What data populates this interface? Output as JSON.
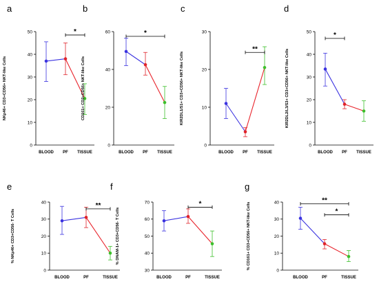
{
  "colors": {
    "blood": "#3a32e0",
    "pf": "#e0232a",
    "tissue": "#3cbf2a",
    "line_blue": "#3a32e0",
    "line_red": "#e8222a"
  },
  "chart_data": [
    {
      "type": "line",
      "panel": "a",
      "categories": [
        "BLOOD",
        "PF",
        "TISSUE"
      ],
      "values": [
        37,
        38,
        20.5
      ],
      "error_low": [
        28,
        31,
        13.5
      ],
      "error_high": [
        45.5,
        45,
        27
      ],
      "ylabel": "NKp46+ CD3+CD56+ NKT-like Cells",
      "ylim": [
        0,
        50
      ],
      "yticks": [
        0,
        10,
        20,
        30,
        40,
        50
      ],
      "significance": [
        {
          "from": 1,
          "to": 2,
          "label": "*",
          "level": 48.5
        }
      ]
    },
    {
      "type": "line",
      "panel": "b",
      "categories": [
        "BLOOD",
        "PF",
        "TISSUE"
      ],
      "values": [
        49.5,
        42.5,
        22.5
      ],
      "error_low": [
        42,
        37,
        14
      ],
      "error_high": [
        56.5,
        49,
        31
      ],
      "ylabel": "CD161+ CD3+CD56+ NKT-like Cells",
      "ylim": [
        0,
        60
      ],
      "yticks": [
        0,
        20,
        40,
        60
      ],
      "significance": [
        {
          "from": 0,
          "to": 2,
          "label": "*",
          "level": 57.5
        }
      ]
    },
    {
      "type": "line",
      "panel": "c",
      "categories": [
        "BLOOD",
        "PF",
        "TISSUE"
      ],
      "values": [
        11,
        3.5,
        20.5
      ],
      "error_low": [
        7,
        2.2,
        16
      ],
      "error_high": [
        15,
        4.6,
        26
      ],
      "ylabel": "KIR2DL1/S1+ CD3+CD56+ NKT-like Cells",
      "ylim": [
        0,
        30
      ],
      "yticks": [
        0,
        10,
        20,
        30
      ],
      "significance": [
        {
          "from": 1,
          "to": 2,
          "label": "**",
          "level": 24.5
        }
      ]
    },
    {
      "type": "line",
      "panel": "d",
      "categories": [
        "BLOOD",
        "PF",
        "TISSUE"
      ],
      "values": [
        33.5,
        18,
        15
      ],
      "error_low": [
        26,
        16,
        10.5
      ],
      "error_high": [
        40.5,
        20,
        19.5
      ],
      "ylabel": "KIR2DL2/L3/S3+ CD3+CD56+ NKT-like Cells",
      "ylim": [
        0,
        50
      ],
      "yticks": [
        0,
        10,
        20,
        30,
        40,
        50
      ],
      "significance": [
        {
          "from": 0,
          "to": 1,
          "label": "*",
          "level": 47
        }
      ]
    },
    {
      "type": "line",
      "panel": "e",
      "categories": [
        "BLOOD",
        "PF",
        "TISSUE"
      ],
      "values": [
        29,
        31,
        10
      ],
      "error_low": [
        21,
        25,
        6
      ],
      "error_high": [
        37.5,
        37,
        14
      ],
      "ylabel": "% NKp46+ CD3+CD56- T Cells",
      "ylim": [
        0,
        40
      ],
      "yticks": [
        0,
        10,
        20,
        30,
        40
      ],
      "significance": [
        {
          "from": 1,
          "to": 2,
          "label": "**",
          "level": 36
        }
      ]
    },
    {
      "type": "line",
      "panel": "f",
      "categories": [
        "BLOOD",
        "PF",
        "TISSUE"
      ],
      "values": [
        59,
        61.5,
        45.5
      ],
      "error_low": [
        53,
        57.5,
        38
      ],
      "error_high": [
        65,
        66,
        53
      ],
      "ylabel": "% DNAM-1+ CD3+CD56- T Cells",
      "ylim": [
        30,
        70
      ],
      "yticks": [
        30,
        40,
        50,
        60,
        70
      ],
      "significance": [
        {
          "from": 1,
          "to": 2,
          "label": "*",
          "level": 67
        }
      ]
    },
    {
      "type": "line",
      "panel": "g",
      "categories": [
        "BLOOD",
        "PF",
        "TISSUE"
      ],
      "values": [
        30.5,
        15.5,
        8
      ],
      "error_low": [
        24,
        12.5,
        5
      ],
      "error_high": [
        37,
        18,
        11.5
      ],
      "ylabel": "% CD161+ CD3+CD56+ NKT-like Cells",
      "ylim": [
        0,
        40
      ],
      "yticks": [
        0,
        10,
        20,
        30,
        40
      ],
      "significance": [
        {
          "from": 0,
          "to": 2,
          "label": "**",
          "level": 39
        },
        {
          "from": 1,
          "to": 2,
          "label": "*",
          "level": 32.5
        }
      ]
    }
  ]
}
